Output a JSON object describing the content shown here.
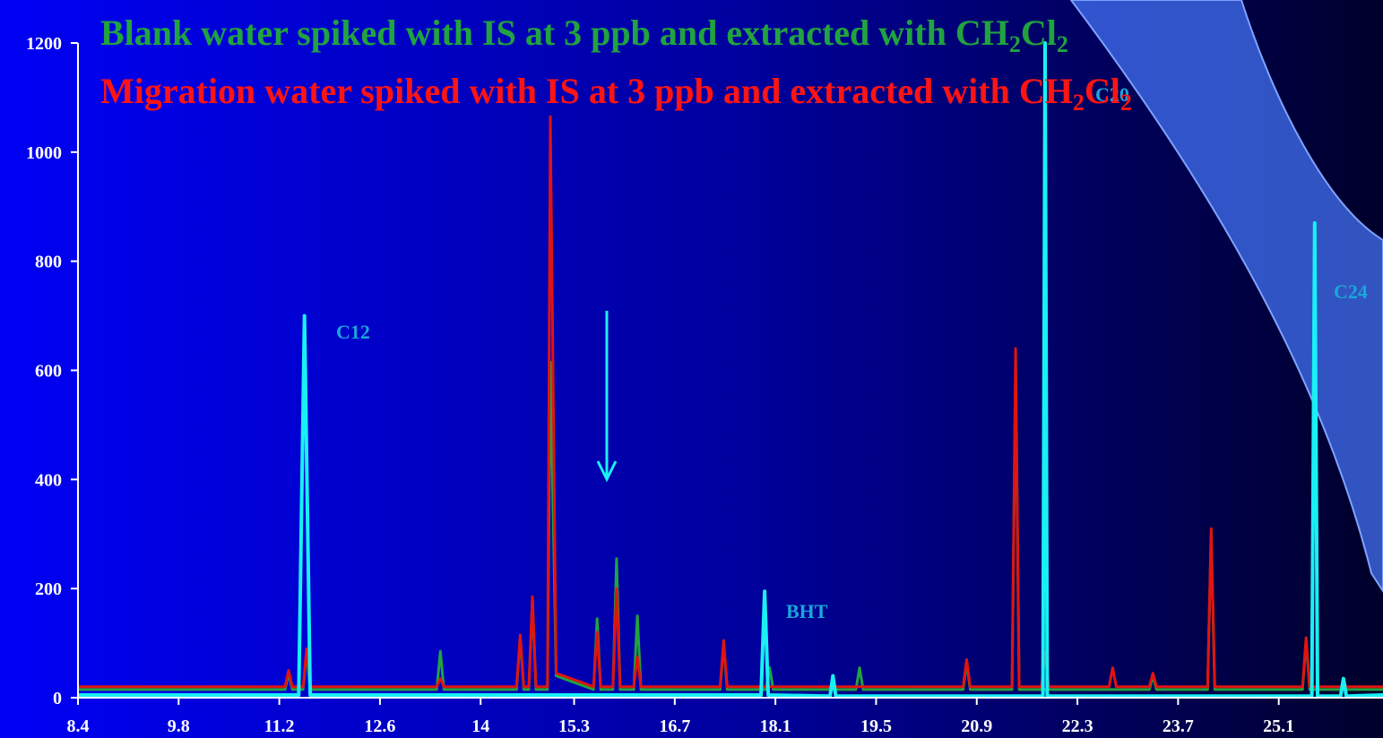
{
  "chart_data": {
    "type": "line",
    "title_lines": [
      {
        "color": "#21a33f",
        "parts": [
          "Blank water spiked with IS at 3 ppb and extracted with CH",
          "2",
          "Cl",
          "2"
        ]
      },
      {
        "color": "#ff1414",
        "parts": [
          "Migration water spiked with IS at 3 ppb and extracted with CH",
          "2",
          "Cl",
          "2"
        ]
      }
    ],
    "annotations": [
      "C12",
      "BHT",
      "C20",
      "C24"
    ],
    "xlim": [
      8.4,
      26.55
    ],
    "xticks": [
      8.4,
      9.8,
      11.2,
      12.6,
      14.0,
      15.3,
      16.7,
      18.1,
      19.5,
      20.9,
      22.3,
      23.7,
      25.1
    ],
    "ylim": [
      0,
      1200
    ],
    "yticks": [
      0,
      200,
      400,
      600,
      800,
      1000,
      1200
    ],
    "series": [
      {
        "color": "#21a33f",
        "x": [
          8.4,
          11.28,
          11.33,
          11.38,
          11.53,
          11.58,
          11.63,
          13.39,
          13.44,
          13.49,
          14.5,
          14.55,
          14.6,
          14.67,
          14.72,
          14.77,
          14.93,
          14.97,
          15.05,
          15.57,
          15.62,
          15.67,
          15.84,
          15.89,
          15.94,
          16.13,
          16.18,
          16.23,
          17.33,
          17.38,
          17.43,
          17.97,
          18.02,
          18.07,
          19.22,
          19.27,
          19.32,
          20.71,
          20.76,
          20.81,
          21.39,
          21.44,
          21.49,
          23.3,
          23.35,
          23.4,
          24.11,
          24.16,
          24.21,
          25.43,
          25.48,
          25.53,
          26.55
        ],
        "values": [
          15,
          15,
          45,
          15,
          15,
          85,
          15,
          15,
          85,
          15,
          15,
          110,
          15,
          15,
          180,
          15,
          15,
          615,
          40,
          15,
          145,
          15,
          15,
          255,
          15,
          15,
          150,
          15,
          15,
          100,
          15,
          15,
          55,
          15,
          15,
          55,
          15,
          15,
          65,
          15,
          15,
          600,
          15,
          15,
          40,
          15,
          15,
          300,
          15,
          15,
          105,
          15,
          15
        ]
      },
      {
        "color": "#e0140f",
        "x": [
          8.4,
          11.28,
          11.33,
          11.38,
          11.53,
          11.58,
          11.63,
          13.39,
          13.44,
          13.49,
          14.5,
          14.55,
          14.6,
          14.67,
          14.72,
          14.77,
          14.93,
          14.97,
          15.05,
          15.57,
          15.62,
          15.67,
          15.84,
          15.89,
          15.94,
          16.13,
          16.18,
          16.23,
          17.33,
          17.38,
          17.43,
          20.71,
          20.76,
          20.81,
          21.39,
          21.44,
          21.49,
          21.8,
          21.85,
          21.9,
          22.74,
          22.79,
          22.84,
          23.3,
          23.35,
          23.4,
          24.11,
          24.16,
          24.21,
          25.43,
          25.48,
          25.53,
          26.55
        ],
        "values": [
          20,
          20,
          50,
          20,
          20,
          90,
          20,
          20,
          35,
          20,
          20,
          115,
          20,
          20,
          185,
          20,
          20,
          1065,
          45,
          20,
          120,
          20,
          20,
          200,
          20,
          20,
          75,
          20,
          20,
          105,
          20,
          20,
          70,
          20,
          20,
          640,
          20,
          20,
          85,
          20,
          20,
          55,
          20,
          20,
          45,
          20,
          20,
          310,
          20,
          20,
          110,
          20,
          20
        ]
      },
      {
        "color": "#19f0f5",
        "x": [
          8.4,
          11.47,
          11.55,
          11.63,
          17.9,
          17.95,
          18.0,
          18.86,
          18.9,
          18.94,
          21.82,
          21.85,
          21.88,
          25.56,
          25.6,
          25.64,
          25.96,
          26.0,
          26.04,
          26.55
        ],
        "values": [
          5,
          5,
          700,
          5,
          5,
          195,
          5,
          3,
          40,
          3,
          3,
          1200,
          3,
          3,
          870,
          3,
          3,
          35,
          3,
          5
        ]
      }
    ]
  }
}
